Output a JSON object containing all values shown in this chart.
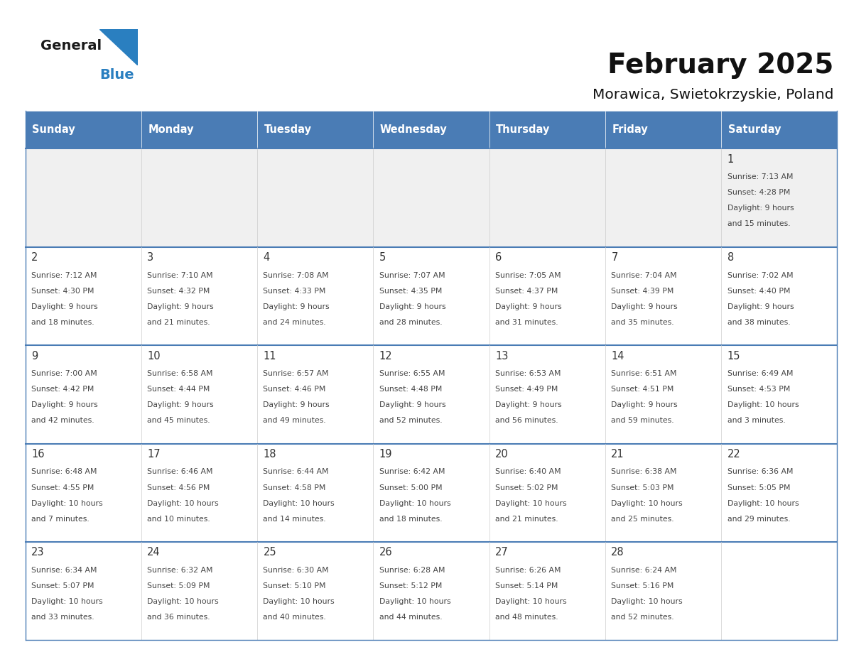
{
  "title": "February 2025",
  "subtitle": "Morawica, Swietokrzyskie, Poland",
  "days_of_week": [
    "Sunday",
    "Monday",
    "Tuesday",
    "Wednesday",
    "Thursday",
    "Friday",
    "Saturday"
  ],
  "header_bg": "#4a7cb5",
  "header_text": "#ffffff",
  "cell_bg_gray": "#f0f0f0",
  "cell_bg_white": "#ffffff",
  "row_line_color": "#4a7cb5",
  "text_color": "#333333",
  "info_text_color": "#444444",
  "logo_general_color": "#1a1a1a",
  "logo_blue_color": "#2a7fc0",
  "triangle_color": "#2a7fc0",
  "weeks": [
    [
      null,
      null,
      null,
      null,
      null,
      null,
      1
    ],
    [
      2,
      3,
      4,
      5,
      6,
      7,
      8
    ],
    [
      9,
      10,
      11,
      12,
      13,
      14,
      15
    ],
    [
      16,
      17,
      18,
      19,
      20,
      21,
      22
    ],
    [
      23,
      24,
      25,
      26,
      27,
      28,
      null
    ]
  ],
  "day_data": {
    "1": {
      "sunrise": "7:13 AM",
      "sunset": "4:28 PM",
      "daylight": "9 hours",
      "daylight2": "and 15 minutes."
    },
    "2": {
      "sunrise": "7:12 AM",
      "sunset": "4:30 PM",
      "daylight": "9 hours",
      "daylight2": "and 18 minutes."
    },
    "3": {
      "sunrise": "7:10 AM",
      "sunset": "4:32 PM",
      "daylight": "9 hours",
      "daylight2": "and 21 minutes."
    },
    "4": {
      "sunrise": "7:08 AM",
      "sunset": "4:33 PM",
      "daylight": "9 hours",
      "daylight2": "and 24 minutes."
    },
    "5": {
      "sunrise": "7:07 AM",
      "sunset": "4:35 PM",
      "daylight": "9 hours",
      "daylight2": "and 28 minutes."
    },
    "6": {
      "sunrise": "7:05 AM",
      "sunset": "4:37 PM",
      "daylight": "9 hours",
      "daylight2": "and 31 minutes."
    },
    "7": {
      "sunrise": "7:04 AM",
      "sunset": "4:39 PM",
      "daylight": "9 hours",
      "daylight2": "and 35 minutes."
    },
    "8": {
      "sunrise": "7:02 AM",
      "sunset": "4:40 PM",
      "daylight": "9 hours",
      "daylight2": "and 38 minutes."
    },
    "9": {
      "sunrise": "7:00 AM",
      "sunset": "4:42 PM",
      "daylight": "9 hours",
      "daylight2": "and 42 minutes."
    },
    "10": {
      "sunrise": "6:58 AM",
      "sunset": "4:44 PM",
      "daylight": "9 hours",
      "daylight2": "and 45 minutes."
    },
    "11": {
      "sunrise": "6:57 AM",
      "sunset": "4:46 PM",
      "daylight": "9 hours",
      "daylight2": "and 49 minutes."
    },
    "12": {
      "sunrise": "6:55 AM",
      "sunset": "4:48 PM",
      "daylight": "9 hours",
      "daylight2": "and 52 minutes."
    },
    "13": {
      "sunrise": "6:53 AM",
      "sunset": "4:49 PM",
      "daylight": "9 hours",
      "daylight2": "and 56 minutes."
    },
    "14": {
      "sunrise": "6:51 AM",
      "sunset": "4:51 PM",
      "daylight": "9 hours",
      "daylight2": "and 59 minutes."
    },
    "15": {
      "sunrise": "6:49 AM",
      "sunset": "4:53 PM",
      "daylight": "10 hours",
      "daylight2": "and 3 minutes."
    },
    "16": {
      "sunrise": "6:48 AM",
      "sunset": "4:55 PM",
      "daylight": "10 hours",
      "daylight2": "and 7 minutes."
    },
    "17": {
      "sunrise": "6:46 AM",
      "sunset": "4:56 PM",
      "daylight": "10 hours",
      "daylight2": "and 10 minutes."
    },
    "18": {
      "sunrise": "6:44 AM",
      "sunset": "4:58 PM",
      "daylight": "10 hours",
      "daylight2": "and 14 minutes."
    },
    "19": {
      "sunrise": "6:42 AM",
      "sunset": "5:00 PM",
      "daylight": "10 hours",
      "daylight2": "and 18 minutes."
    },
    "20": {
      "sunrise": "6:40 AM",
      "sunset": "5:02 PM",
      "daylight": "10 hours",
      "daylight2": "and 21 minutes."
    },
    "21": {
      "sunrise": "6:38 AM",
      "sunset": "5:03 PM",
      "daylight": "10 hours",
      "daylight2": "and 25 minutes."
    },
    "22": {
      "sunrise": "6:36 AM",
      "sunset": "5:05 PM",
      "daylight": "10 hours",
      "daylight2": "and 29 minutes."
    },
    "23": {
      "sunrise": "6:34 AM",
      "sunset": "5:07 PM",
      "daylight": "10 hours",
      "daylight2": "and 33 minutes."
    },
    "24": {
      "sunrise": "6:32 AM",
      "sunset": "5:09 PM",
      "daylight": "10 hours",
      "daylight2": "and 36 minutes."
    },
    "25": {
      "sunrise": "6:30 AM",
      "sunset": "5:10 PM",
      "daylight": "10 hours",
      "daylight2": "and 40 minutes."
    },
    "26": {
      "sunrise": "6:28 AM",
      "sunset": "5:12 PM",
      "daylight": "10 hours",
      "daylight2": "and 44 minutes."
    },
    "27": {
      "sunrise": "6:26 AM",
      "sunset": "5:14 PM",
      "daylight": "10 hours",
      "daylight2": "and 48 minutes."
    },
    "28": {
      "sunrise": "6:24 AM",
      "sunset": "5:16 PM",
      "daylight": "10 hours",
      "daylight2": "and 52 minutes."
    }
  }
}
